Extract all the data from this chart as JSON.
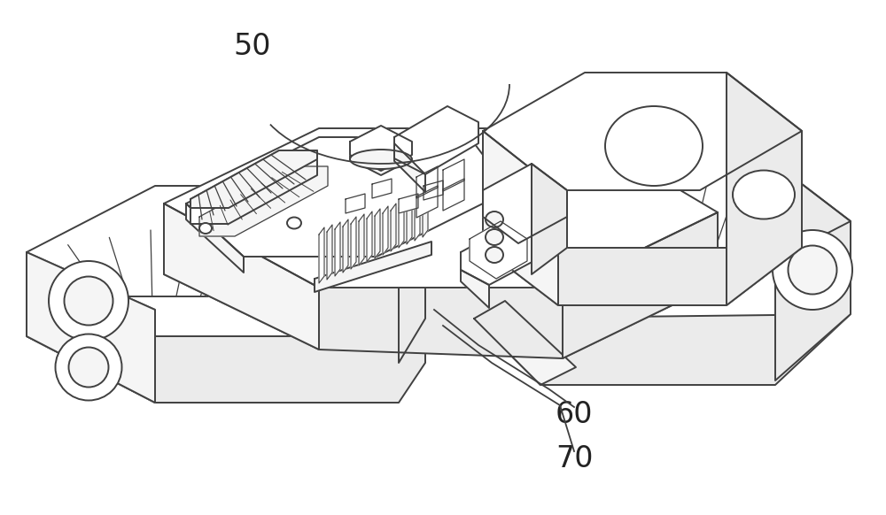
{
  "background_color": "#ffffff",
  "line_color": "#404040",
  "fill_white": "#ffffff",
  "fill_light": "#f5f5f5",
  "fill_mid": "#ebebeb",
  "fill_dark": "#e0e0e0",
  "label_50": "50",
  "label_60": "60",
  "label_70": "70",
  "figsize": [
    10.0,
    5.82
  ],
  "dpi": 100
}
